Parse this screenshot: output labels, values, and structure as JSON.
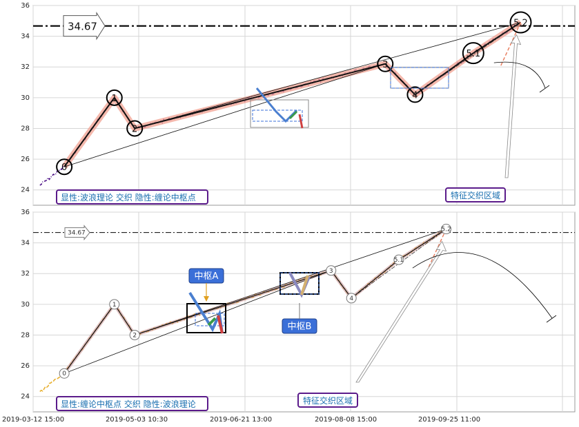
{
  "chart_data": [
    {
      "type": "line",
      "panel": "top",
      "ylim": [
        23,
        36
      ],
      "yticks": [
        "24",
        "26",
        "28",
        "30",
        "32",
        "34",
        "36"
      ],
      "grid": true,
      "reference_line": {
        "value": 34.67,
        "label": "34.67"
      },
      "legend_box": "显性:波浪理论 交织 隐性:缠论中枢点",
      "zone_label": "特征交织区域",
      "waves": [
        {
          "label": "0",
          "t": 0.23,
          "v": 25.5
        },
        {
          "label": "1",
          "t": 0.6,
          "v": 30.0
        },
        {
          "label": "2",
          "t": 0.75,
          "v": 28.0
        },
        {
          "label": "3",
          "t": 2.6,
          "v": 32.2
        },
        {
          "label": "4",
          "t": 2.82,
          "v": 30.2
        },
        {
          "label": "5.1",
          "t": 3.25,
          "v": 32.9
        },
        {
          "label": "5.2",
          "t": 3.6,
          "v": 34.9
        }
      ],
      "series_color": "#4b0f86"
    },
    {
      "type": "line",
      "panel": "bottom",
      "ylim": [
        23,
        36
      ],
      "yticks": [
        "24",
        "26",
        "28",
        "30",
        "32",
        "34",
        "36"
      ],
      "grid": true,
      "reference_line": {
        "value": 34.67,
        "label": "34.67"
      },
      "legend_box": "显性:缠论中枢点 交织 隐性:波浪理论",
      "zone_label": "特征交织区域",
      "centers": [
        {
          "label": "中枢A"
        },
        {
          "label": "中枢B"
        }
      ],
      "waves": [
        {
          "label": "0",
          "t": 0.23,
          "v": 25.5
        },
        {
          "label": "1",
          "t": 0.6,
          "v": 30.0
        },
        {
          "label": "2",
          "t": 0.75,
          "v": 28.0
        },
        {
          "label": "3",
          "t": 2.2,
          "v": 32.2
        },
        {
          "label": "4",
          "t": 2.35,
          "v": 30.4
        },
        {
          "label": "5.1",
          "t": 2.7,
          "v": 32.9
        },
        {
          "label": "5.2",
          "t": 3.05,
          "v": 34.9
        }
      ],
      "series_color": "#e8b030"
    }
  ],
  "x_axis": {
    "ticks": [
      "2019-03-12 15:00",
      "2019-05-03 10:30",
      "2019-06-21 13:00",
      "2019-08-08 15:00",
      "2019-09-25 11:00"
    ]
  },
  "colors": {
    "top_series": "#4b0f86",
    "bottom_series": "#e8b030",
    "wave_band": "#f0a090",
    "legend_border": "#5a1a8a",
    "center_fill": "#3a6fd8"
  }
}
